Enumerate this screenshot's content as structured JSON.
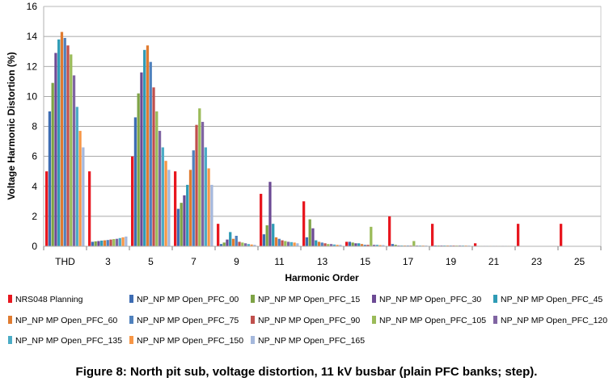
{
  "caption": "Figure 8: North pit sub, voltage distortion, 11 kV busbar (plain PFC banks; step).",
  "chart_data": {
    "type": "bar",
    "title": "",
    "xlabel": "Harmonic Order",
    "ylabel": "Voltage Harmonic Distortion (%)",
    "ylim": [
      0,
      16
    ],
    "yticks": [
      0,
      2,
      4,
      6,
      8,
      10,
      12,
      14,
      16
    ],
    "grid": true,
    "legend_position": "bottom",
    "categories": [
      "THD",
      "3",
      "5",
      "7",
      "9",
      "11",
      "13",
      "15",
      "17",
      "19",
      "21",
      "23",
      "25"
    ],
    "series": [
      {
        "name": "NRS048 Planning",
        "color": "#e8171f",
        "values": [
          5.0,
          5.0,
          6.0,
          5.0,
          1.5,
          3.5,
          3.0,
          0.3,
          2.0,
          1.5,
          0.2,
          1.5,
          1.5
        ]
      },
      {
        "name": "NP_NP MP Open_PFC_00",
        "color": "#3d6cb3",
        "values": [
          9.0,
          0.3,
          8.6,
          2.5,
          0.15,
          0.8,
          0.6,
          0.3,
          0.15,
          0.05,
          0.03,
          0.02,
          0.02
        ]
      },
      {
        "name": "NP_NP MP Open_PFC_15",
        "color": "#7ea346",
        "values": [
          10.9,
          0.33,
          10.2,
          2.9,
          0.25,
          1.4,
          1.8,
          0.25,
          0.1,
          0.05,
          0.03,
          0.02,
          0.02
        ]
      },
      {
        "name": "NP_NP MP Open_PFC_30",
        "color": "#6c4a94",
        "values": [
          12.9,
          0.35,
          11.6,
          3.4,
          0.45,
          4.3,
          1.2,
          0.2,
          0.05,
          0.05,
          0.03,
          0.02,
          0.02
        ]
      },
      {
        "name": "NP_NP MP Open_PFC_45",
        "color": "#2f9bb5",
        "values": [
          13.8,
          0.38,
          13.1,
          4.1,
          0.95,
          1.5,
          0.4,
          0.2,
          0.05,
          0.05,
          0.03,
          0.02,
          0.02
        ]
      },
      {
        "name": "NP_NP MP Open_PFC_60",
        "color": "#e07b30",
        "values": [
          14.3,
          0.4,
          13.4,
          5.1,
          0.5,
          0.6,
          0.3,
          0.15,
          0.05,
          0.05,
          0.03,
          0.02,
          0.02
        ]
      },
      {
        "name": "NP_NP MP Open_PFC_75",
        "color": "#4f81bd",
        "values": [
          13.9,
          0.42,
          12.3,
          6.4,
          0.7,
          0.5,
          0.25,
          0.1,
          0.05,
          0.05,
          0.03,
          0.02,
          0.02
        ]
      },
      {
        "name": "NP_NP MP Open_PFC_90",
        "color": "#c0504d",
        "values": [
          13.4,
          0.45,
          10.6,
          8.1,
          0.3,
          0.4,
          0.2,
          0.1,
          0.05,
          0.05,
          0.03,
          0.02,
          0.02
        ]
      },
      {
        "name": "NP_NP MP Open_PFC_105",
        "color": "#9bbb59",
        "values": [
          12.8,
          0.48,
          9.0,
          9.2,
          0.25,
          0.35,
          0.15,
          1.3,
          0.35,
          0.05,
          0.03,
          0.02,
          0.02
        ]
      },
      {
        "name": "NP_NP MP Open_PFC_120",
        "color": "#8064a2",
        "values": [
          11.4,
          0.5,
          7.7,
          8.3,
          0.2,
          0.3,
          0.15,
          0.1,
          0.05,
          0.05,
          0.03,
          0.02,
          0.02
        ]
      },
      {
        "name": "NP_NP MP Open_PFC_135",
        "color": "#4bacc6",
        "values": [
          9.3,
          0.55,
          6.6,
          6.6,
          0.15,
          0.28,
          0.12,
          0.1,
          0.05,
          0.05,
          0.03,
          0.02,
          0.02
        ]
      },
      {
        "name": "NP_NP MP Open_PFC_150",
        "color": "#f79646",
        "values": [
          7.7,
          0.6,
          5.7,
          5.2,
          0.12,
          0.25,
          0.1,
          0.08,
          0.05,
          0.05,
          0.03,
          0.02,
          0.02
        ]
      },
      {
        "name": "NP_NP MP Open_PFC_165",
        "color": "#a5b8dc",
        "values": [
          6.6,
          0.65,
          5.1,
          4.1,
          0.1,
          0.2,
          0.1,
          0.08,
          0.05,
          0.05,
          0.03,
          0.02,
          0.02
        ]
      }
    ]
  }
}
